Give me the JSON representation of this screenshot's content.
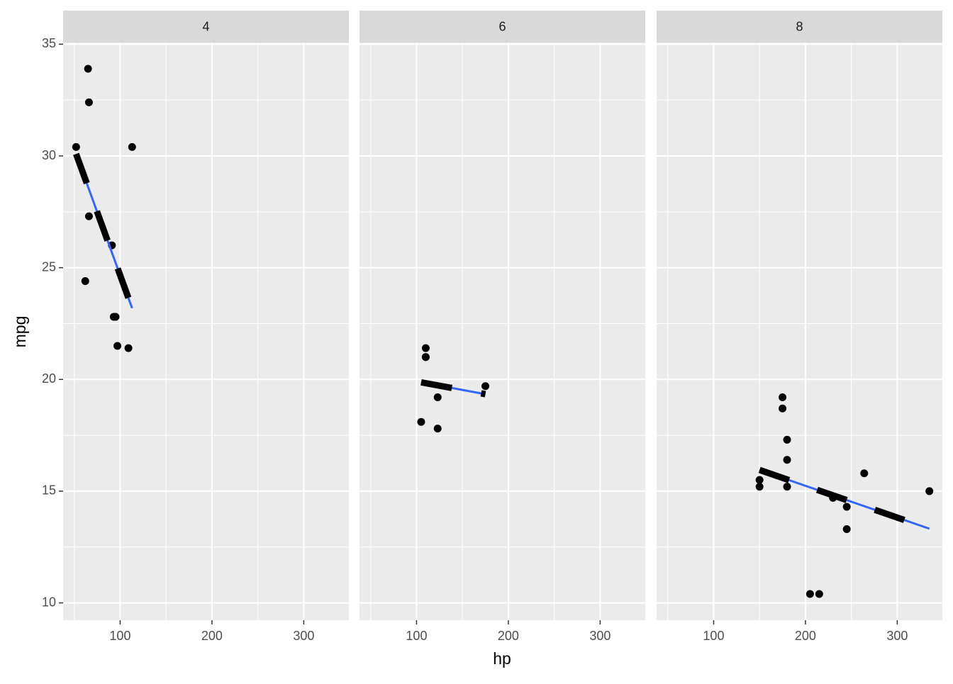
{
  "chart_data": {
    "type": "scatter",
    "xlabel": "hp",
    "ylabel": "mpg",
    "xlim": [
      37.85,
      349.15
    ],
    "ylim": [
      9.225,
      35.075
    ],
    "xticks": [
      100,
      200,
      300
    ],
    "yticks": [
      10,
      15,
      20,
      25,
      30,
      35
    ],
    "grid": true,
    "point_color": "#000000",
    "fit_color": "#3366ff",
    "dash_color": "#000000",
    "panels": [
      {
        "title": "4",
        "x": [
          93,
          62,
          95,
          66,
          52,
          65,
          97,
          66,
          91,
          113,
          109
        ],
        "y": [
          22.8,
          24.4,
          22.8,
          32.4,
          30.4,
          33.9,
          21.5,
          27.3,
          26.0,
          30.4,
          21.4
        ],
        "fit": {
          "x": [
            52,
            113
          ],
          "y": [
            30.09,
            23.19
          ]
        }
      },
      {
        "title": "6",
        "x": [
          110,
          110,
          110,
          105,
          123,
          123,
          175
        ],
        "y": [
          21.0,
          21.0,
          21.4,
          18.1,
          19.2,
          17.8,
          19.7
        ],
        "fit": {
          "x": [
            105,
            175
          ],
          "y": [
            19.87,
            19.34
          ]
        }
      },
      {
        "title": "8",
        "x": [
          175,
          245,
          180,
          180,
          180,
          205,
          215,
          230,
          150,
          150,
          245,
          175,
          264,
          335
        ],
        "y": [
          18.7,
          14.3,
          16.4,
          17.3,
          15.2,
          10.4,
          10.4,
          14.7,
          15.5,
          15.2,
          13.3,
          19.2,
          15.8,
          15.0
        ],
        "fit": {
          "x": [
            150,
            335
          ],
          "y": [
            15.95,
            13.32
          ]
        }
      }
    ]
  }
}
